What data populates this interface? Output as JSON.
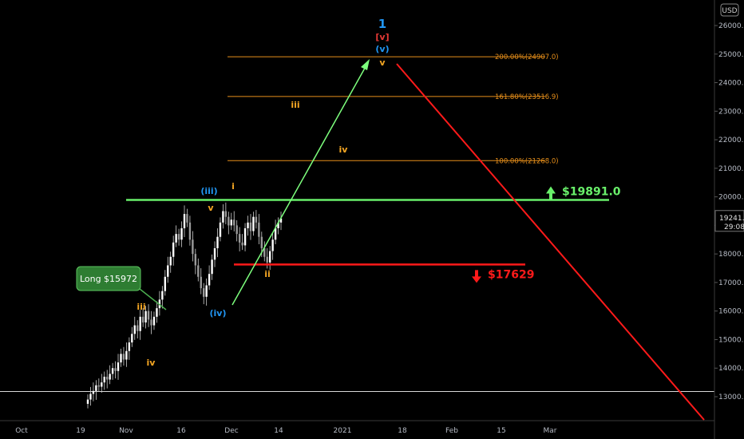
{
  "currency_badge": "USD",
  "chart_data": {
    "type": "line",
    "title": "",
    "xlabel": "",
    "ylabel": "",
    "ylim": [
      12300,
      27000
    ],
    "y_ticks": [
      13000,
      14000,
      15000,
      16000,
      17000,
      18000,
      19000,
      20000,
      21000,
      22000,
      23000,
      24000,
      25000,
      26000
    ],
    "y_tick_labels": [
      "13000.0",
      "14000.0",
      "15000.0",
      "16000.0",
      "17000.0",
      "18000.0",
      "19000.0",
      "20000.0",
      "21000.0",
      "22000.0",
      "23000.0",
      "24000.0",
      "25000.0",
      "26000.0"
    ],
    "x_ticks": [
      "Oct",
      "19",
      "Nov",
      "16",
      "Dec",
      "14",
      "2021",
      "18",
      "Feb",
      "15",
      "Mar"
    ],
    "price_label": {
      "value": 19241,
      "text": "19241.0",
      "countdown": "29:08"
    },
    "series": [
      {
        "values": [
          12900,
          13100,
          13200,
          13400,
          13350,
          13500,
          13700,
          13600,
          13800,
          14000,
          13900,
          14200,
          14500,
          14300,
          14600,
          14900,
          15200,
          15500,
          15300,
          15800,
          15600,
          16000,
          15700,
          15500,
          15800,
          16100,
          16400,
          16700,
          17200,
          17600,
          17900,
          18400,
          18700,
          18500,
          18900,
          19400,
          19100,
          18500,
          18000,
          17600,
          17200,
          16800,
          16500,
          16900,
          17300,
          17800,
          18200,
          18600,
          19100,
          19500,
          19300,
          19000,
          19200,
          19000,
          18700,
          18400,
          18300,
          18900,
          19100,
          18800,
          19300,
          19100,
          18600,
          18200,
          17900,
          17700,
          18100,
          18500,
          18900,
          19100,
          19241
        ]
      }
    ],
    "horizontal_levels": [
      {
        "kind": "fib",
        "label": "200.00%(24907.0)",
        "value": 24907
      },
      {
        "kind": "fib",
        "label": "161.80%(23516.9)",
        "value": 23516.9
      },
      {
        "kind": "fib",
        "label": "100.00%(21268.0)",
        "value": 21268
      },
      {
        "kind": "resistance",
        "label": "$19891.0",
        "value": 19891
      },
      {
        "kind": "support",
        "label": "$17629",
        "value": 17629
      },
      {
        "kind": "baseline",
        "value": 13180
      }
    ],
    "wave_labels": [
      {
        "text": "1",
        "color": "#2196f3"
      },
      {
        "text": "[v]",
        "color": "#e53935"
      },
      {
        "text": "(v)",
        "color": "#2196f3"
      },
      {
        "text": "v",
        "color": "#f5a623"
      },
      {
        "text": "iii",
        "color": "#f5a623"
      },
      {
        "text": "iv",
        "color": "#f5a623"
      },
      {
        "text": "(iii)",
        "color": "#2196f3"
      },
      {
        "text": "i",
        "color": "#f5a623"
      },
      {
        "text": "v",
        "color": "#f5a623"
      },
      {
        "text": "ii",
        "color": "#f5a623"
      },
      {
        "text": "(iv)",
        "color": "#2196f3"
      },
      {
        "text": "iii",
        "color": "#f5a623"
      },
      {
        "text": "iv",
        "color": "#f5a623"
      }
    ],
    "callout": {
      "text": "Long $15972"
    },
    "colors": {
      "fib": "#e58e1a",
      "resistance": "#69f06a",
      "support": "#ff1a1a",
      "trend_up": "#7dff7d",
      "trend_down": "#ff1a1a",
      "candle": "#cfcfcf"
    }
  }
}
